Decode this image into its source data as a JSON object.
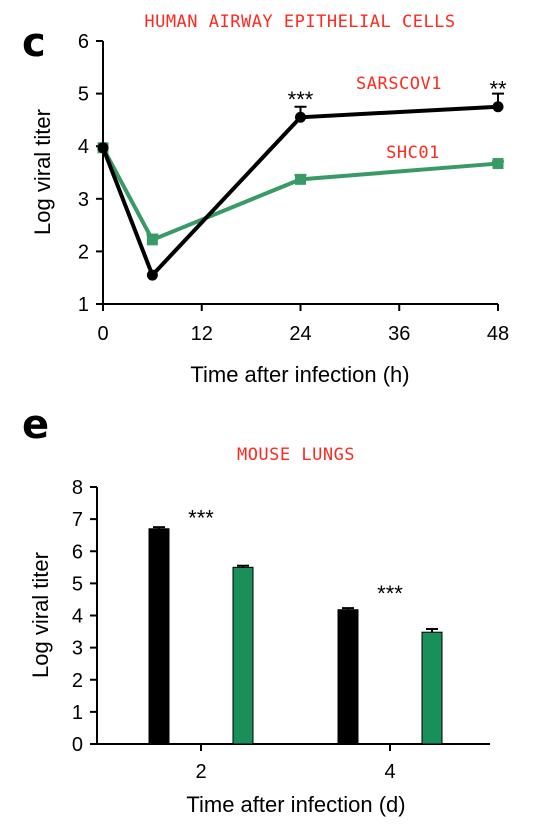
{
  "panels": {
    "c": {
      "letter": "c",
      "annotation_title": "HUMAN AIRWAY EPITHELIAL CELLS",
      "series_labels": [
        "SARSCOV1",
        "SHC01"
      ],
      "significance": [
        {
          "x": 24,
          "y": 4.9,
          "text": "***"
        },
        {
          "x": 48,
          "y": 5.1,
          "text": "**"
        }
      ]
    },
    "e": {
      "letter": "e",
      "annotation_title": "MOUSE LUNGS",
      "significance": [
        {
          "category": "2",
          "y": 7.05,
          "text": "***"
        },
        {
          "category": "4",
          "y": 4.7,
          "text": "***"
        }
      ]
    }
  },
  "colors": {
    "black_series": "#000000",
    "green_line": "#3a9a66",
    "green_bar": "#1a8f5a",
    "annotation": "#ff2a1f"
  },
  "chart_data": [
    {
      "type": "line",
      "xlabel": "Time after infection (h)",
      "ylabel": "Log viral titer",
      "xlim": [
        0,
        48
      ],
      "ylim": [
        1,
        6
      ],
      "xticks": [
        0,
        12,
        24,
        36,
        48
      ],
      "yticks": [
        1,
        2,
        3,
        4,
        5,
        6
      ],
      "series": [
        {
          "name": "SARSCOV1",
          "color": "#000000",
          "marker": "circle",
          "x": [
            0,
            6,
            24,
            48
          ],
          "y": [
            3.97,
            1.55,
            4.55,
            4.75
          ],
          "error": [
            0,
            0,
            0.2,
            0.25
          ]
        },
        {
          "name": "SHC01",
          "color": "#3a9a66",
          "marker": "square",
          "x": [
            0,
            6,
            24,
            48
          ],
          "y": [
            3.97,
            2.22,
            3.37,
            3.67
          ],
          "error": [
            0,
            0.1,
            0.08,
            0.04
          ]
        }
      ]
    },
    {
      "type": "bar",
      "xlabel": "Time after infection (d)",
      "ylabel": "Log viral titer",
      "ylim": [
        0,
        8
      ],
      "yticks": [
        0,
        1,
        2,
        3,
        4,
        5,
        6,
        7,
        8
      ],
      "categories": [
        "2",
        "4"
      ],
      "series": [
        {
          "color": "#000000",
          "values": [
            6.7,
            4.18
          ],
          "error": [
            0.05,
            0.05
          ]
        },
        {
          "color": "#1a8f5a",
          "values": [
            5.5,
            3.48
          ],
          "error": [
            0.05,
            0.1
          ]
        }
      ]
    }
  ]
}
